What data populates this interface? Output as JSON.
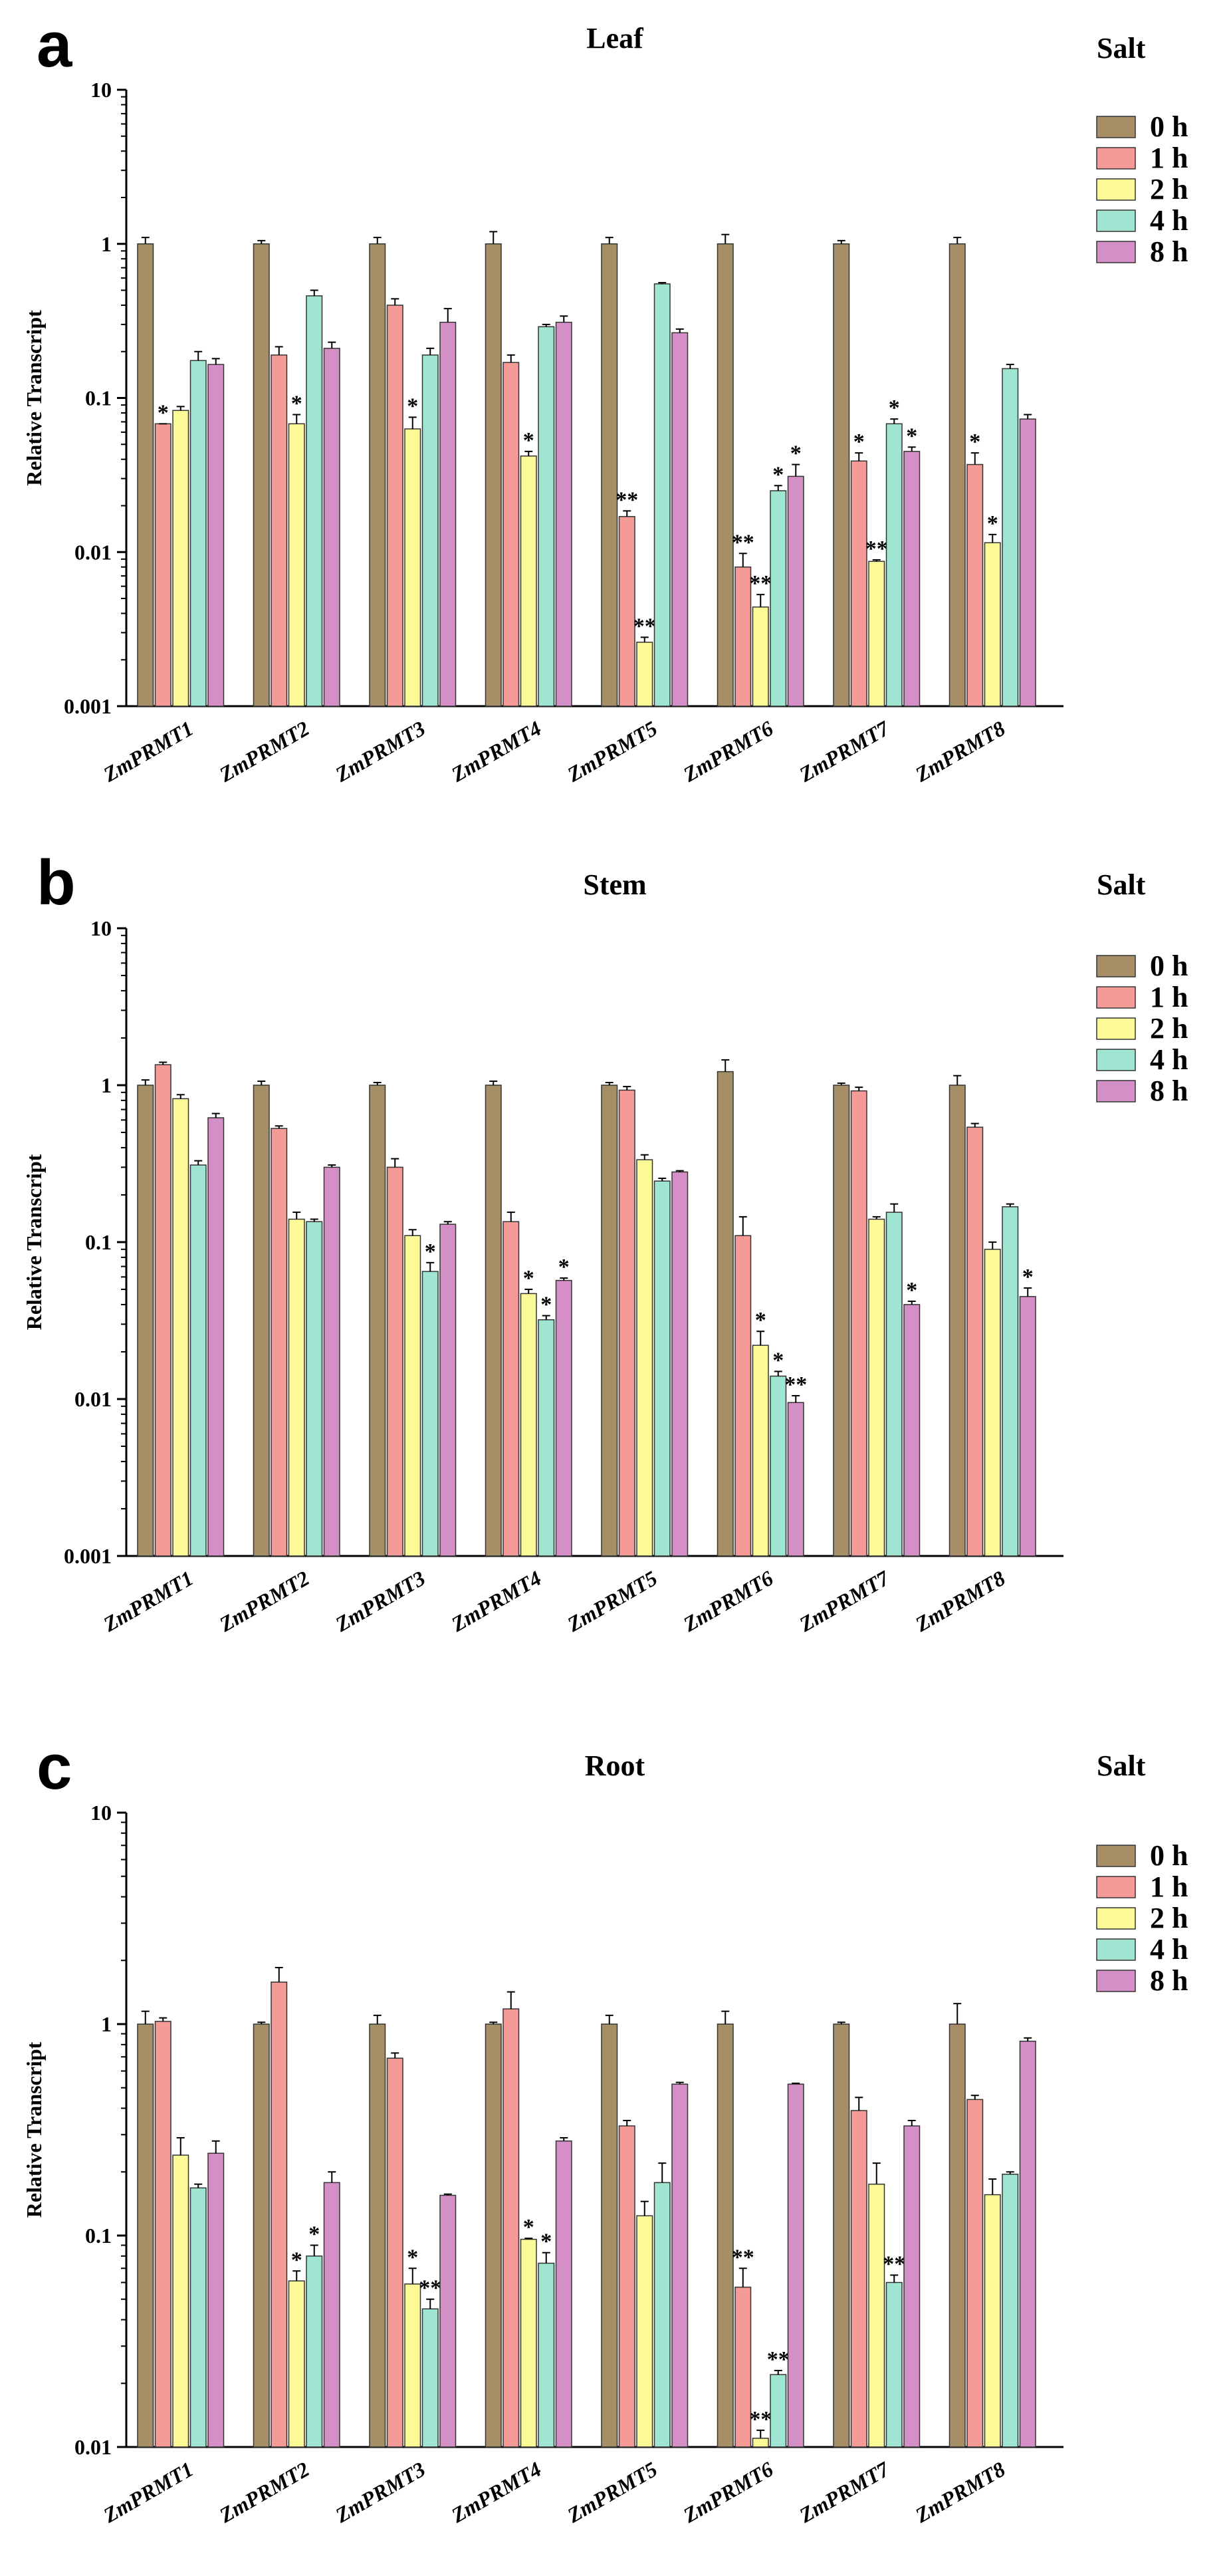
{
  "series_names": [
    "0 h",
    "1 h",
    "2 h",
    "4 h",
    "8 h"
  ],
  "colors": {
    "0 h": "#a68f66",
    "1 h": "#f49b97",
    "2 h": "#fbfa96",
    "4 h": "#9fe5d1",
    "8 h": "#d48fc6"
  },
  "chart_data": [
    {
      "type": "bar",
      "panel": "a",
      "title": "Leaf",
      "legend_title": "Salt",
      "ylabel": "Relative Transcript",
      "yscale": "log",
      "ylim": [
        0.001,
        10
      ],
      "yticks": [
        "0.001",
        "0.01",
        "0.1",
        "1",
        "10"
      ],
      "categories": [
        "ZmPRMT1",
        "ZmPRMT2",
        "ZmPRMT3",
        "ZmPRMT4",
        "ZmPRMT5",
        "ZmPRMT6",
        "ZmPRMT7",
        "ZmPRMT8"
      ],
      "series": [
        {
          "name": "0 h",
          "values": [
            1,
            1,
            1,
            1,
            1,
            1,
            1,
            1
          ],
          "errors": [
            1.1,
            1.05,
            1.1,
            1.2,
            1.1,
            1.15,
            1.05,
            1.1
          ],
          "sig": [
            "",
            "",
            "",
            "",
            "",
            "",
            "",
            ""
          ]
        },
        {
          "name": "1 h",
          "values": [
            0.068,
            0.19,
            0.4,
            0.17,
            0.017,
            0.008,
            0.039,
            0.037
          ],
          "errors": [
            0.068,
            0.215,
            0.44,
            0.19,
            0.0185,
            0.0098,
            0.044,
            0.044
          ],
          "sig": [
            "*",
            "",
            "",
            "",
            "**",
            "**",
            "*",
            "*"
          ]
        },
        {
          "name": "2 h",
          "values": [
            0.083,
            0.068,
            0.063,
            0.042,
            0.0026,
            0.0044,
            0.0087,
            0.0115
          ],
          "errors": [
            0.088,
            0.078,
            0.075,
            0.045,
            0.0028,
            0.0053,
            0.0089,
            0.013
          ],
          "sig": [
            "",
            "*",
            "*",
            "*",
            "**",
            "**",
            "**",
            "*"
          ]
        },
        {
          "name": "4 h",
          "values": [
            0.175,
            0.46,
            0.19,
            0.29,
            0.55,
            0.025,
            0.068,
            0.155
          ],
          "errors": [
            0.2,
            0.5,
            0.21,
            0.3,
            0.56,
            0.027,
            0.073,
            0.165
          ],
          "sig": [
            "",
            "",
            "",
            "",
            "",
            "*",
            "*",
            ""
          ]
        },
        {
          "name": "8 h",
          "values": [
            0.165,
            0.21,
            0.31,
            0.31,
            0.265,
            0.031,
            0.045,
            0.073
          ],
          "errors": [
            0.18,
            0.23,
            0.38,
            0.34,
            0.28,
            0.037,
            0.048,
            0.078
          ],
          "sig": [
            "",
            "",
            "",
            "",
            "",
            "*",
            "*",
            ""
          ]
        }
      ]
    },
    {
      "type": "bar",
      "panel": "b",
      "title": "Stem",
      "legend_title": "Salt",
      "ylabel": "Relative Transcript",
      "yscale": "log",
      "ylim": [
        0.001,
        10
      ],
      "yticks": [
        "0.001",
        "0.01",
        "0.1",
        "1",
        "10"
      ],
      "categories": [
        "ZmPRMT1",
        "ZmPRMT2",
        "ZmPRMT3",
        "ZmPRMT4",
        "ZmPRMT5",
        "ZmPRMT6",
        "ZmPRMT7",
        "ZmPRMT8"
      ],
      "series": [
        {
          "name": "0 h",
          "values": [
            1,
            1,
            1,
            1,
            1,
            1.22,
            1,
            1
          ],
          "errors": [
            1.08,
            1.06,
            1.04,
            1.06,
            1.04,
            1.45,
            1.03,
            1.15
          ],
          "sig": [
            "",
            "",
            "",
            "",
            "",
            "",
            "",
            ""
          ]
        },
        {
          "name": "1 h",
          "values": [
            1.35,
            0.53,
            0.3,
            0.135,
            0.93,
            0.11,
            0.92,
            0.54
          ],
          "errors": [
            1.4,
            0.55,
            0.34,
            0.155,
            0.98,
            0.145,
            0.97,
            0.57
          ],
          "sig": [
            "",
            "",
            "",
            "",
            "",
            "",
            "",
            ""
          ]
        },
        {
          "name": "2 h",
          "values": [
            0.82,
            0.14,
            0.11,
            0.047,
            0.335,
            0.022,
            0.14,
            0.09
          ],
          "errors": [
            0.87,
            0.155,
            0.12,
            0.05,
            0.36,
            0.027,
            0.145,
            0.1
          ],
          "sig": [
            "",
            "",
            "",
            "*",
            "",
            "*",
            "",
            ""
          ]
        },
        {
          "name": "4 h",
          "values": [
            0.31,
            0.135,
            0.065,
            0.032,
            0.245,
            0.014,
            0.155,
            0.168
          ],
          "errors": [
            0.33,
            0.14,
            0.074,
            0.034,
            0.255,
            0.015,
            0.175,
            0.175
          ],
          "sig": [
            "",
            "",
            "*",
            "*",
            "",
            "*",
            "",
            ""
          ]
        },
        {
          "name": "8 h",
          "values": [
            0.62,
            0.3,
            0.13,
            0.057,
            0.28,
            0.0095,
            0.04,
            0.045
          ],
          "errors": [
            0.66,
            0.31,
            0.135,
            0.059,
            0.285,
            0.0105,
            0.042,
            0.051
          ],
          "sig": [
            "",
            "",
            "",
            "*",
            "",
            "**",
            "*",
            "*"
          ]
        }
      ]
    },
    {
      "type": "bar",
      "panel": "c",
      "title": "Root",
      "legend_title": "Salt",
      "ylabel": "Relative Transcript",
      "yscale": "log",
      "ylim": [
        0.01,
        10
      ],
      "yticks": [
        "0.01",
        "0.1",
        "1",
        "10"
      ],
      "categories": [
        "ZmPRMT1",
        "ZmPRMT2",
        "ZmPRMT3",
        "ZmPRMT4",
        "ZmPRMT5",
        "ZmPRMT6",
        "ZmPRMT7",
        "ZmPRMT8"
      ],
      "series": [
        {
          "name": "0 h",
          "values": [
            1,
            1,
            1,
            1,
            1,
            1,
            1,
            1
          ],
          "errors": [
            1.15,
            1.02,
            1.1,
            1.02,
            1.1,
            1.15,
            1.02,
            1.25
          ],
          "sig": [
            "",
            "",
            "",
            "",
            "",
            "",
            "",
            ""
          ]
        },
        {
          "name": "1 h",
          "values": [
            1.03,
            1.58,
            0.69,
            1.18,
            0.33,
            0.057,
            0.39,
            0.44
          ],
          "errors": [
            1.07,
            1.85,
            0.73,
            1.42,
            0.35,
            0.07,
            0.45,
            0.46
          ],
          "sig": [
            "",
            "",
            "",
            "",
            "",
            "**",
            "",
            ""
          ]
        },
        {
          "name": "2 h",
          "values": [
            0.24,
            0.061,
            0.059,
            0.096,
            0.124,
            0.011,
            0.175,
            0.156
          ],
          "errors": [
            0.29,
            0.068,
            0.07,
            0.097,
            0.145,
            0.012,
            0.22,
            0.185
          ],
          "sig": [
            "",
            "*",
            "*",
            "*",
            "",
            "**",
            "",
            ""
          ]
        },
        {
          "name": "4 h",
          "values": [
            0.168,
            0.08,
            0.045,
            0.074,
            0.178,
            0.022,
            0.06,
            0.195
          ],
          "errors": [
            0.175,
            0.09,
            0.05,
            0.083,
            0.22,
            0.023,
            0.065,
            0.2
          ],
          "sig": [
            "",
            "*",
            "**",
            "*",
            "",
            "**",
            "**",
            ""
          ]
        },
        {
          "name": "8 h",
          "values": [
            0.245,
            0.178,
            0.155,
            0.28,
            0.52,
            0.52,
            0.33,
            0.83
          ],
          "errors": [
            0.28,
            0.2,
            0.157,
            0.29,
            0.53,
            0.525,
            0.35,
            0.86
          ],
          "sig": [
            "",
            "",
            "",
            "",
            "",
            "",
            "",
            ""
          ]
        }
      ]
    }
  ]
}
